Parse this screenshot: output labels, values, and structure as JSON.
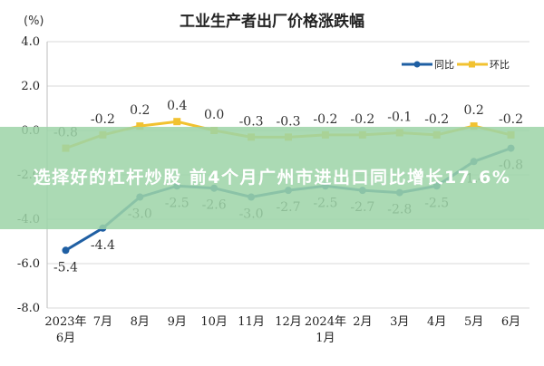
{
  "chart_data": {
    "type": "line",
    "title": "工业生产者出厂价格涨跌幅",
    "unit": "(%)",
    "categories": [
      "2023年\n6月",
      "7月",
      "8月",
      "9月",
      "10月",
      "11月",
      "12月",
      "2024年\n1月",
      "2月",
      "3月",
      "4月",
      "5月",
      "6月"
    ],
    "ylim": [
      -8.0,
      4.0
    ],
    "yticks": [
      "4.0",
      "2.0",
      "0.0",
      "-2.0",
      "-4.0",
      "-6.0",
      "-8.0"
    ],
    "grid": true,
    "legend_position": "top-right",
    "series": [
      {
        "name": "同比",
        "color": "#1f5fa3",
        "values": [
          -5.4,
          -4.4,
          -3.0,
          -2.5,
          -2.6,
          -3.0,
          -2.7,
          -2.5,
          -2.7,
          -2.8,
          -2.5,
          -1.4,
          -0.8
        ]
      },
      {
        "name": "环比",
        "color": "#f2c230",
        "values": [
          -0.8,
          -0.2,
          0.2,
          0.4,
          0.0,
          -0.3,
          -0.3,
          -0.2,
          -0.2,
          -0.1,
          -0.2,
          0.2,
          -0.2
        ]
      }
    ]
  },
  "overlay": {
    "text": "选择好的杠杆炒股 前4个月广州市进出口同比增长17.6%"
  }
}
